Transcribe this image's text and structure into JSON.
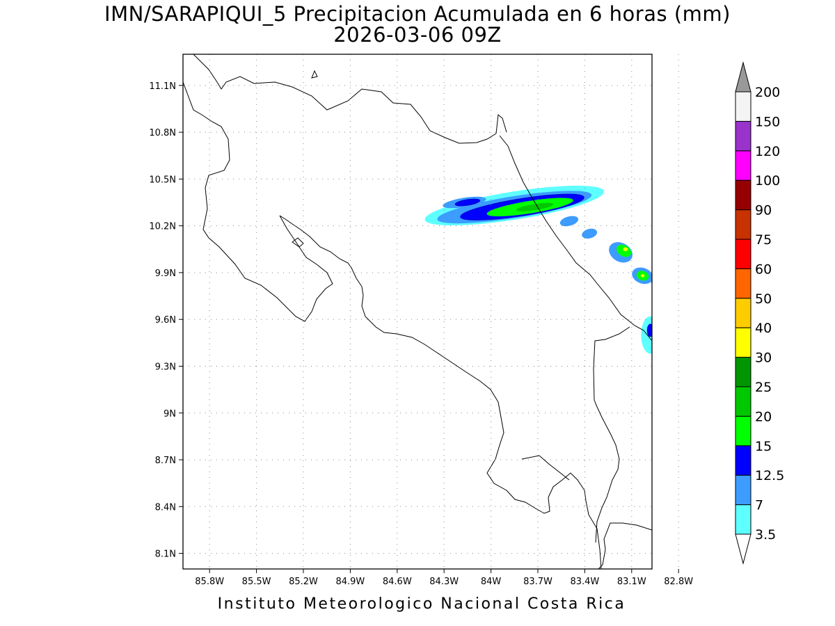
{
  "title": {
    "line1": "IMN/SARAPIQUI_5 Precipitacion Acumulada en 6 horas (mm)",
    "line2": "2026-03-06 09Z"
  },
  "footer": "Instituto Meteorologico Nacional Costa Rica",
  "map": {
    "lat_range": [
      8.0,
      11.3
    ],
    "lon_range": [
      -85.97,
      -82.97
    ],
    "lat_ticks": [
      {
        "value": 11.1,
        "label": "11.1N"
      },
      {
        "value": 10.8,
        "label": "10.8N"
      },
      {
        "value": 10.5,
        "label": "10.5N"
      },
      {
        "value": 10.2,
        "label": "10.2N"
      },
      {
        "value": 9.9,
        "label": "9.9N"
      },
      {
        "value": 9.6,
        "label": "9.6N"
      },
      {
        "value": 9.3,
        "label": "9.3N"
      },
      {
        "value": 9.0,
        "label": "9N"
      },
      {
        "value": 8.7,
        "label": "8.7N"
      },
      {
        "value": 8.4,
        "label": "8.4N"
      },
      {
        "value": 8.1,
        "label": "8.1N"
      }
    ],
    "lon_ticks": [
      {
        "value": -85.8,
        "label": "85.8W"
      },
      {
        "value": -85.5,
        "label": "85.5W"
      },
      {
        "value": -85.2,
        "label": "85.2W"
      },
      {
        "value": -84.9,
        "label": "84.9W"
      },
      {
        "value": -84.6,
        "label": "84.6W"
      },
      {
        "value": -84.3,
        "label": "84.3W"
      },
      {
        "value": -84.0,
        "label": "84W"
      },
      {
        "value": -83.7,
        "label": "83.7W"
      },
      {
        "value": -83.4,
        "label": "83.4W"
      },
      {
        "value": -83.1,
        "label": "83.1W"
      },
      {
        "value": -82.8,
        "label": "82.8W"
      }
    ],
    "grid": true,
    "coastline_color": "#000000"
  },
  "colorbar": {
    "levels": [
      {
        "label": "3.5",
        "color": "#5effff"
      },
      {
        "label": "7",
        "color": "#3c9cff"
      },
      {
        "label": "12.5",
        "color": "#0000ff"
      },
      {
        "label": "15",
        "color": "#00ff00"
      },
      {
        "label": "20",
        "color": "#00c800"
      },
      {
        "label": "25",
        "color": "#009600"
      },
      {
        "label": "30",
        "color": "#ffff00"
      },
      {
        "label": "40",
        "color": "#ffcc00"
      },
      {
        "label": "50",
        "color": "#ff6600"
      },
      {
        "label": "60",
        "color": "#ff0000"
      },
      {
        "label": "75",
        "color": "#c83200"
      },
      {
        "label": "90",
        "color": "#960000"
      },
      {
        "label": "100",
        "color": "#ff00ff"
      },
      {
        "label": "120",
        "color": "#9933cc"
      },
      {
        "label": "150",
        "color": "#f4f4f4"
      },
      {
        "label": "200",
        "color": "#999999"
      }
    ],
    "lower_arrow_color": "#ffffff",
    "upper_arrow_color": "#999999"
  },
  "precip_features": [
    {
      "id": "main-band",
      "level": "3.5",
      "lon": -83.85,
      "lat": 10.33,
      "rx": 0.58,
      "ry": 0.09,
      "rot": 9
    },
    {
      "id": "main-band-7",
      "level": "7",
      "lon": -83.85,
      "lat": 10.32,
      "rx": 0.5,
      "ry": 0.07,
      "rot": 9
    },
    {
      "id": "main-band-12",
      "level": "12.5",
      "lon": -83.8,
      "lat": 10.32,
      "rx": 0.4,
      "ry": 0.055,
      "rot": 9
    },
    {
      "id": "main-band-15",
      "level": "15",
      "lon": -83.75,
      "lat": 10.32,
      "rx": 0.28,
      "ry": 0.04,
      "rot": 9
    },
    {
      "id": "main-band-20",
      "level": "20",
      "lon": -83.72,
      "lat": 10.32,
      "rx": 0.12,
      "ry": 0.02,
      "rot": 9
    },
    {
      "id": "west-blob",
      "level": "7",
      "lon": -84.17,
      "lat": 10.35,
      "rx": 0.14,
      "ry": 0.03,
      "rot": 9
    },
    {
      "id": "west-blob-12",
      "level": "12.5",
      "lon": -84.15,
      "lat": 10.35,
      "rx": 0.08,
      "ry": 0.018,
      "rot": 9
    },
    {
      "id": "mid-blob-1",
      "level": "7",
      "lon": -83.5,
      "lat": 10.23,
      "rx": 0.06,
      "ry": 0.03,
      "rot": 15
    },
    {
      "id": "mid-blob-2",
      "level": "7",
      "lon": -83.37,
      "lat": 10.15,
      "rx": 0.05,
      "ry": 0.03,
      "rot": 15
    },
    {
      "id": "east-blob",
      "level": "7",
      "lon": -83.17,
      "lat": 10.03,
      "rx": 0.08,
      "ry": 0.06,
      "rot": -30
    },
    {
      "id": "east-blob-15",
      "level": "15",
      "lon": -83.15,
      "lat": 10.04,
      "rx": 0.05,
      "ry": 0.035,
      "rot": -30
    },
    {
      "id": "east-blob-30",
      "level": "30",
      "lon": -83.14,
      "lat": 10.05,
      "rx": 0.015,
      "ry": 0.012,
      "rot": 0
    },
    {
      "id": "se-blob-1",
      "level": "7",
      "lon": -83.03,
      "lat": 9.88,
      "rx": 0.07,
      "ry": 0.05,
      "rot": -20
    },
    {
      "id": "se-blob-1-15",
      "level": "15",
      "lon": -83.03,
      "lat": 9.88,
      "rx": 0.04,
      "ry": 0.03,
      "rot": -20
    },
    {
      "id": "se-blob-1-30",
      "level": "30",
      "lon": -83.03,
      "lat": 9.88,
      "rx": 0.012,
      "ry": 0.01,
      "rot": 0
    },
    {
      "id": "se-blob-2",
      "level": "7",
      "lon": -82.9,
      "lat": 9.83,
      "rx": 0.08,
      "ry": 0.06,
      "rot": -30
    },
    {
      "id": "se-blob-2-15",
      "level": "15",
      "lon": -82.9,
      "lat": 9.84,
      "rx": 0.05,
      "ry": 0.035,
      "rot": -30
    },
    {
      "id": "edge-blob",
      "level": "3.5",
      "lon": -82.98,
      "lat": 9.5,
      "rx": 0.06,
      "ry": 0.12,
      "rot": 0
    },
    {
      "id": "edge-blob-12",
      "level": "12.5",
      "lon": -82.98,
      "lat": 9.53,
      "rx": 0.02,
      "ry": 0.04,
      "rot": 0
    }
  ]
}
